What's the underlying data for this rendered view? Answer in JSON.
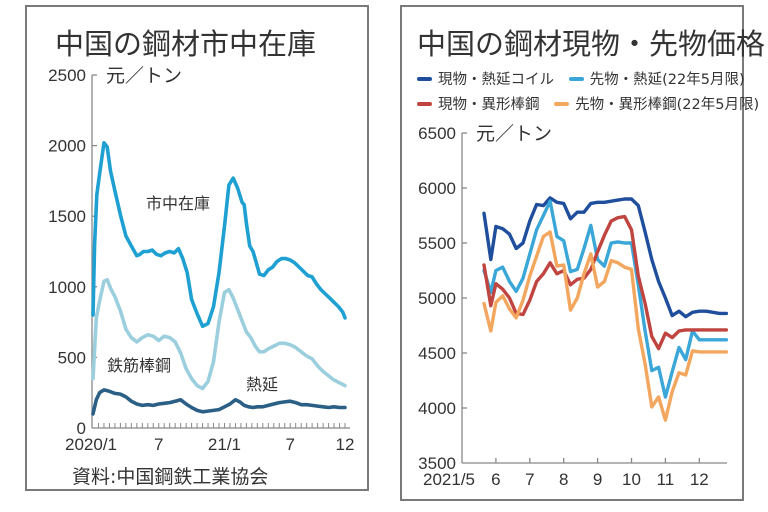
{
  "chart_data": [
    {
      "type": "line",
      "title": "中国の鋼材市中在庫",
      "ylabel": "元/トン",
      "unit_label": "元／トン",
      "ylim": [
        0,
        2500
      ],
      "yticks": [
        0,
        500,
        1000,
        1500,
        2000,
        2500
      ],
      "xlim": [
        0,
        23
      ],
      "xtick_labels": [
        {
          "x": 0,
          "label": "2020/1"
        },
        {
          "x": 6,
          "label": "7"
        },
        {
          "x": 12,
          "label": "21/1"
        },
        {
          "x": 18,
          "label": "7"
        },
        {
          "x": 23,
          "label": "12"
        }
      ],
      "minor_ticks_per_month": 2,
      "source": "資料:中国鋼鉄工業協会",
      "series": [
        {
          "name": "市中在庫",
          "label": "市中在庫",
          "color": "#1fa0d2",
          "x": [
            0,
            0.15,
            0.35,
            0.6,
            1.0,
            1.3,
            1.6,
            2.0,
            2.5,
            3.0,
            3.5,
            4.0,
            4.3,
            4.6,
            5.0,
            5.4,
            5.8,
            6.2,
            6.6,
            7.0,
            7.4,
            7.8,
            8.2,
            8.6,
            9.0,
            9.5,
            10.0,
            10.5,
            11.0,
            11.5,
            12.0,
            12.4,
            12.8,
            13.2,
            13.6,
            13.8,
            14.0,
            14.3,
            14.6,
            14.9,
            15.2,
            15.6,
            16.0,
            16.4,
            16.8,
            17.2,
            17.6,
            18.0,
            18.4,
            18.8,
            19.2,
            19.6,
            20.0,
            20.4,
            20.8,
            21.2,
            21.6,
            22.0,
            22.4,
            22.8,
            23.0
          ],
          "values": [
            800,
            1300,
            1650,
            1800,
            2020,
            1990,
            1820,
            1680,
            1510,
            1360,
            1290,
            1220,
            1230,
            1250,
            1250,
            1260,
            1230,
            1220,
            1240,
            1250,
            1240,
            1270,
            1200,
            1100,
            910,
            810,
            720,
            740,
            860,
            1100,
            1430,
            1720,
            1770,
            1700,
            1600,
            1580,
            1450,
            1290,
            1250,
            1170,
            1090,
            1080,
            1120,
            1140,
            1180,
            1200,
            1200,
            1190,
            1170,
            1140,
            1110,
            1080,
            1070,
            1020,
            980,
            950,
            920,
            890,
            860,
            820,
            780
          ]
        },
        {
          "name": "鉄筋棒鋼",
          "label": "鉄筋棒鋼",
          "color": "#9ccfdd",
          "x": [
            0,
            0.3,
            0.6,
            1.0,
            1.3,
            1.6,
            2.0,
            2.5,
            3.0,
            3.5,
            4.0,
            4.5,
            5.0,
            5.5,
            6.0,
            6.5,
            7.0,
            7.5,
            8.0,
            8.5,
            9.0,
            9.5,
            10.0,
            10.5,
            11.0,
            11.5,
            12.0,
            12.4,
            12.8,
            13.2,
            13.6,
            14.0,
            14.4,
            14.8,
            15.2,
            15.6,
            16.0,
            16.5,
            17.0,
            17.5,
            18.0,
            18.5,
            19.0,
            19.5,
            20.0,
            20.5,
            21.0,
            21.5,
            22.0,
            22.5,
            23.0
          ],
          "values": [
            350,
            780,
            900,
            1040,
            1050,
            990,
            930,
            830,
            700,
            640,
            610,
            640,
            660,
            650,
            620,
            650,
            640,
            610,
            530,
            420,
            350,
            300,
            280,
            330,
            470,
            750,
            960,
            980,
            920,
            840,
            760,
            680,
            640,
            580,
            540,
            540,
            560,
            580,
            600,
            600,
            590,
            570,
            540,
            510,
            490,
            440,
            400,
            370,
            340,
            320,
            300
          ]
        },
        {
          "name": "熱延",
          "label": "熱延",
          "color": "#2b5f86",
          "x": [
            0,
            0.3,
            0.6,
            1.0,
            1.5,
            2.0,
            2.5,
            3.0,
            3.5,
            4.0,
            4.5,
            5.0,
            5.5,
            6.0,
            6.5,
            7.0,
            7.5,
            8.0,
            8.5,
            9.0,
            9.5,
            10.0,
            10.5,
            11.0,
            11.5,
            12.0,
            12.5,
            13.0,
            13.4,
            13.8,
            14.2,
            14.6,
            15.0,
            15.5,
            16.0,
            16.5,
            17.0,
            17.5,
            18.0,
            18.5,
            19.0,
            19.5,
            20.0,
            20.5,
            21.0,
            21.5,
            22.0,
            22.5,
            23.0
          ],
          "values": [
            100,
            200,
            250,
            270,
            260,
            245,
            240,
            220,
            190,
            170,
            160,
            165,
            160,
            170,
            175,
            180,
            190,
            200,
            170,
            145,
            125,
            115,
            120,
            125,
            130,
            150,
            170,
            200,
            185,
            160,
            150,
            145,
            150,
            150,
            160,
            170,
            180,
            185,
            190,
            180,
            165,
            165,
            160,
            155,
            150,
            145,
            150,
            145,
            145
          ]
        }
      ]
    },
    {
      "type": "line",
      "title": "中国の鋼材現物・先物価格",
      "unit_label": "元／トン",
      "ylim": [
        3500,
        6500
      ],
      "yticks": [
        3500,
        4000,
        4500,
        5000,
        5500,
        6000,
        6500
      ],
      "xlim": [
        5,
        12.9
      ],
      "xtick_labels": [
        {
          "x": 5,
          "label": "2021/5"
        },
        {
          "x": 6,
          "label": "6"
        },
        {
          "x": 7,
          "label": "7"
        },
        {
          "x": 8,
          "label": "8"
        },
        {
          "x": 9,
          "label": "9"
        },
        {
          "x": 10,
          "label": "10"
        },
        {
          "x": 11,
          "label": "11"
        },
        {
          "x": 12,
          "label": "12"
        }
      ],
      "series": [
        {
          "name": "現物・熱延コイル",
          "color": "#1f4e9c",
          "x": [
            5.65,
            5.85,
            6.0,
            6.2,
            6.4,
            6.6,
            6.8,
            7.0,
            7.2,
            7.4,
            7.6,
            7.8,
            8.0,
            8.2,
            8.4,
            8.6,
            8.8,
            9.0,
            9.2,
            9.4,
            9.6,
            9.8,
            10.0,
            10.2,
            10.4,
            10.6,
            10.8,
            11.0,
            11.2,
            11.4,
            11.6,
            11.8,
            12.0,
            12.2,
            12.4,
            12.6,
            12.8
          ],
          "values": [
            5770,
            5350,
            5650,
            5630,
            5580,
            5450,
            5500,
            5700,
            5850,
            5840,
            5910,
            5870,
            5860,
            5720,
            5780,
            5780,
            5860,
            5870,
            5870,
            5880,
            5890,
            5900,
            5900,
            5840,
            5600,
            5350,
            5150,
            5000,
            4840,
            4880,
            4830,
            4870,
            4880,
            4880,
            4870,
            4860,
            4860
          ]
        },
        {
          "name": "先物・熱延(22年5月限)",
          "color": "#3ba6d8",
          "x": [
            5.65,
            5.85,
            6.0,
            6.2,
            6.4,
            6.6,
            6.8,
            7.0,
            7.2,
            7.4,
            7.6,
            7.8,
            8.0,
            8.2,
            8.4,
            8.6,
            8.8,
            9.0,
            9.2,
            9.4,
            9.6,
            9.8,
            10.0,
            10.2,
            10.4,
            10.6,
            10.8,
            11.0,
            11.2,
            11.4,
            11.6,
            11.8,
            12.0,
            12.2,
            12.4,
            12.6,
            12.8
          ],
          "values": [
            5250,
            5050,
            5250,
            5280,
            5150,
            5060,
            5180,
            5400,
            5620,
            5750,
            5880,
            5560,
            5520,
            5240,
            5260,
            5450,
            5660,
            5350,
            5290,
            5500,
            5510,
            5500,
            5500,
            5120,
            4700,
            4340,
            4370,
            4100,
            4330,
            4550,
            4440,
            4700,
            4620,
            4620,
            4620,
            4620,
            4620
          ]
        },
        {
          "name": "現物・異形棒鋼",
          "color": "#c0443f",
          "x": [
            5.65,
            5.85,
            6.0,
            6.2,
            6.4,
            6.6,
            6.8,
            7.0,
            7.2,
            7.4,
            7.6,
            7.8,
            8.0,
            8.2,
            8.4,
            8.6,
            8.8,
            9.0,
            9.2,
            9.4,
            9.6,
            9.8,
            10.0,
            10.2,
            10.4,
            10.6,
            10.8,
            11.0,
            11.2,
            11.4,
            11.6,
            11.8,
            12.0,
            12.2,
            12.4,
            12.6,
            12.8
          ],
          "values": [
            5300,
            4930,
            5130,
            5080,
            5000,
            4860,
            4850,
            4980,
            5150,
            5220,
            5320,
            5220,
            5250,
            5120,
            5170,
            5180,
            5260,
            5420,
            5570,
            5700,
            5730,
            5740,
            5620,
            5200,
            4950,
            4650,
            4540,
            4680,
            4640,
            4700,
            4710,
            4710,
            4710,
            4710,
            4710,
            4710,
            4710
          ]
        },
        {
          "name": "先物・異形棒鋼(22年5月限)",
          "color": "#f3a65e",
          "x": [
            5.65,
            5.85,
            6.0,
            6.2,
            6.4,
            6.6,
            6.8,
            7.0,
            7.2,
            7.4,
            7.6,
            7.8,
            8.0,
            8.2,
            8.4,
            8.6,
            8.8,
            9.0,
            9.2,
            9.4,
            9.6,
            9.8,
            10.0,
            10.2,
            10.4,
            10.6,
            10.8,
            11.0,
            11.2,
            11.4,
            11.6,
            11.8,
            12.0,
            12.2,
            12.4,
            12.6,
            12.8
          ],
          "values": [
            4950,
            4700,
            4960,
            5020,
            4900,
            4820,
            4980,
            5200,
            5380,
            5560,
            5600,
            5290,
            5300,
            4890,
            5000,
            5220,
            5400,
            5100,
            5150,
            5340,
            5320,
            5280,
            5260,
            4720,
            4400,
            4010,
            4100,
            3890,
            4150,
            4320,
            4300,
            4520,
            4510,
            4510,
            4510,
            4510,
            4510
          ]
        }
      ]
    }
  ],
  "left": {
    "title": "中国の鋼材市中在庫",
    "unit": "元／トン",
    "source": "資料:中国鋼鉄工業協会"
  },
  "right": {
    "title": "中国の鋼材現物・先物価格",
    "unit": "元／トン",
    "legend": [
      {
        "label": "現物・熱延コイル",
        "color": "#1f4e9c"
      },
      {
        "label": "先物・熱延(22年5月限)",
        "color": "#3ba6d8"
      },
      {
        "label": "現物・異形棒鋼",
        "color": "#c0443f"
      },
      {
        "label": "先物・異形棒鋼(22年5月限)",
        "color": "#f3a65e"
      }
    ]
  }
}
